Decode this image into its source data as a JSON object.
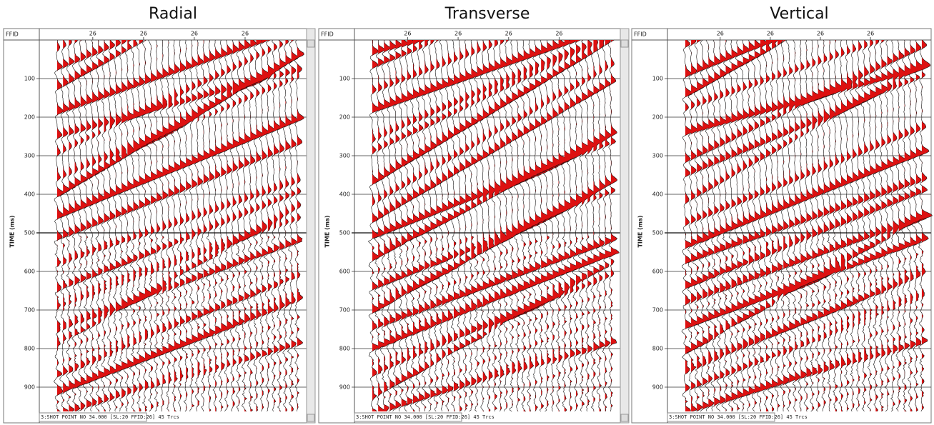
{
  "panels": [
    {
      "title": "Radial",
      "header": "FFID",
      "x_ticks": [
        "26",
        "26",
        "26",
        "26"
      ],
      "y_label": "TIME (ms)",
      "y_ticks": [
        "100",
        "200",
        "300",
        "400",
        "500",
        "600",
        "700",
        "800",
        "900"
      ],
      "status": "3:SHOT POINT NO 34.000 [SL:20 FFID:26] 45 Trcs"
    },
    {
      "title": "Transverse",
      "header": "FFID",
      "x_ticks": [
        "26",
        "26",
        "26",
        "26"
      ],
      "y_label": "TIME (ms)",
      "y_ticks": [
        "100",
        "200",
        "300",
        "400",
        "500",
        "600",
        "700",
        "800",
        "900"
      ],
      "status": "3:SHOT POINT NO 34.000 [SL:20 FFID:26] 45 Trcs"
    },
    {
      "title": "Vertical",
      "header": "FFID",
      "x_ticks": [
        "26",
        "26",
        "26",
        "26"
      ],
      "y_label": "TIME (ms)",
      "y_ticks": [
        "100",
        "200",
        "300",
        "400",
        "500",
        "600",
        "700",
        "800",
        "900"
      ],
      "status": "3:SHOT POINT NO 34.000 [SL:20 FFID:26] 45 Trcs"
    }
  ]
}
